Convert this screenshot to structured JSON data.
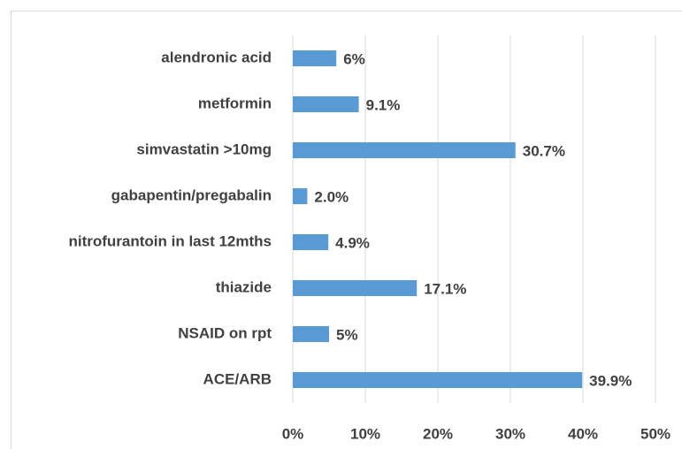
{
  "chart_data": {
    "type": "bar",
    "orientation": "horizontal",
    "categories": [
      "alendronic acid",
      "metformin",
      "simvastatin >10mg",
      "gabapentin/pregabalin",
      "nitrofurantoin in last 12mths",
      "thiazide",
      "NSAID on rpt",
      "ACE/ARB"
    ],
    "values": [
      6,
      9.1,
      30.7,
      2.0,
      4.9,
      17.1,
      5,
      39.9
    ],
    "value_labels": [
      "6%",
      "9.1%",
      "30.7%",
      "2.0%",
      "4.9%",
      "17.1%",
      "5%",
      "39.9%"
    ],
    "color": "#5b9bd5",
    "xlim": [
      0,
      50
    ],
    "xticks": [
      {
        "value": 0,
        "label": "0%"
      },
      {
        "value": 10,
        "label": "10%"
      },
      {
        "value": 20,
        "label": "20%"
      },
      {
        "value": 30,
        "label": "30%"
      },
      {
        "value": 40,
        "label": "40%"
      },
      {
        "value": 50,
        "label": "50%"
      }
    ],
    "grid": true
  }
}
